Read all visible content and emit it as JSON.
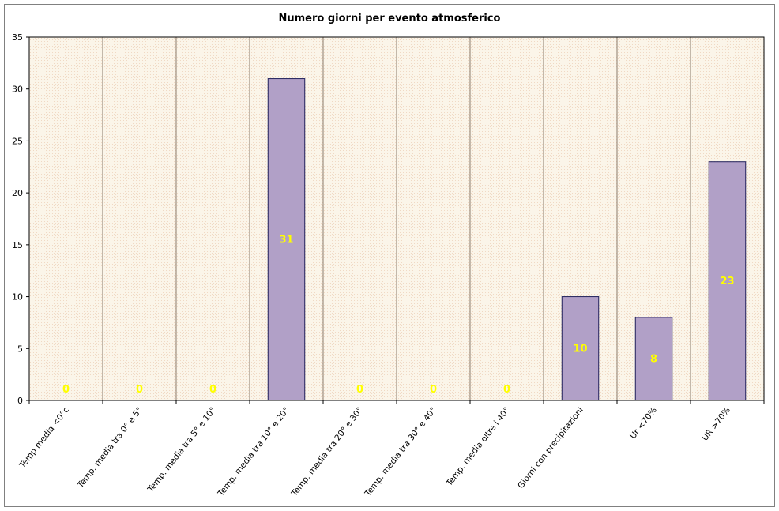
{
  "chart_data": {
    "type": "bar",
    "title": "Numero giorni per evento atmosferico",
    "categories": [
      "Temp media <0°c",
      "Temp. media tra 0° e 5°",
      "Temp. media tra 5° e 10°",
      "Temp. media tra 10° e 20°",
      "Temp. media tra 20° e 30°",
      "Temp. media tra 30° e 40°",
      "Temp. media oltre i 40°",
      "Giorni con precipitazioni",
      "Ur <70%",
      "UR >70%"
    ],
    "values": [
      0,
      0,
      0,
      31,
      0,
      0,
      0,
      10,
      8,
      23
    ],
    "ylim": [
      0,
      35
    ],
    "yticks": [
      0,
      5,
      10,
      15,
      20,
      25,
      30,
      35
    ],
    "grid": "vertical category separators",
    "xlabel": "",
    "ylabel": "",
    "colors": {
      "bar_fill": "#b1a0c7",
      "bar_stroke": "#1f1f5a",
      "plot_bg": "#fbf5e9",
      "plot_dots": "#f0d9c4",
      "separator": "#8b7a6a",
      "data_label": "#ffff00"
    }
  }
}
